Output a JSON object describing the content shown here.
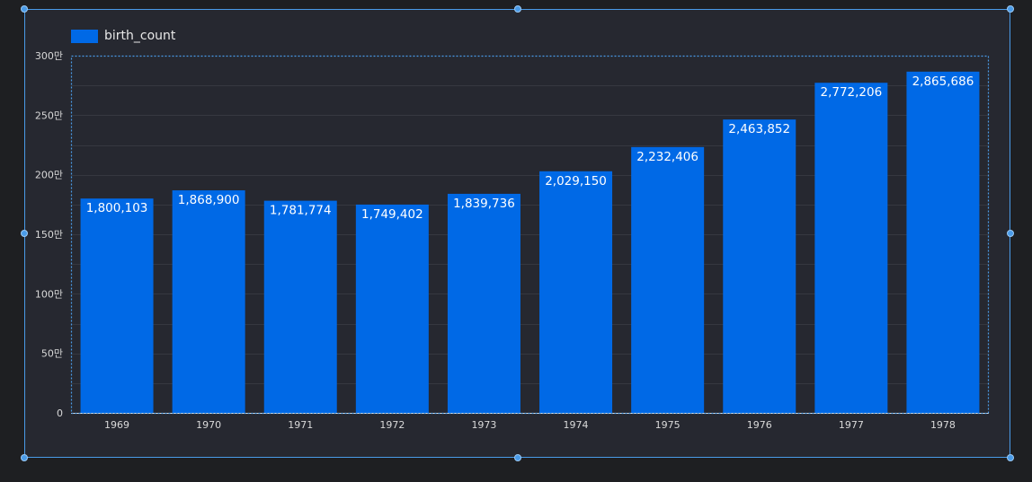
{
  "colors": {
    "bar": "#0069e6",
    "grid": "#363840",
    "selection": "#4a9be8"
  },
  "chart_data": {
    "type": "bar",
    "categories": [
      "1969",
      "1970",
      "1971",
      "1972",
      "1973",
      "1974",
      "1975",
      "1976",
      "1977",
      "1978"
    ],
    "series": [
      {
        "name": "birth_count",
        "values": [
          1800103,
          1868900,
          1781774,
          1749402,
          1839736,
          2029150,
          2232406,
          2463852,
          2772206,
          2865686
        ],
        "labels": [
          "1,800,103",
          "1,868,900",
          "1,781,774",
          "1,749,402",
          "1,839,736",
          "2,029,150",
          "2,232,406",
          "2,463,852",
          "2,772,206",
          "2,865,686"
        ]
      }
    ],
    "ylim": [
      0,
      3000000
    ],
    "yticks": [
      0,
      500000,
      1000000,
      1500000,
      2000000,
      2500000,
      3000000
    ],
    "ytick_labels": [
      "0",
      "50만",
      "100만",
      "150만",
      "200만",
      "250만",
      "300만"
    ],
    "legend_position": "top-left",
    "xlabel": "",
    "ylabel": "",
    "title": ""
  }
}
